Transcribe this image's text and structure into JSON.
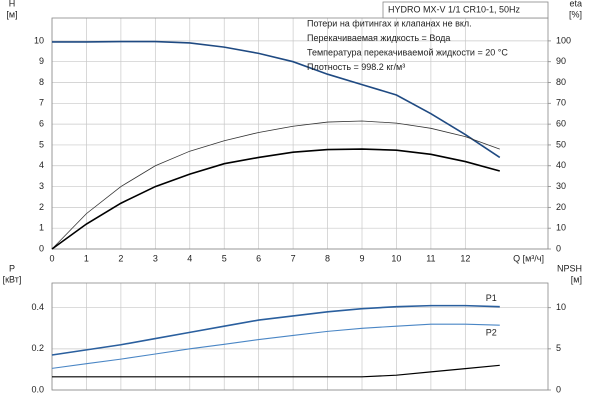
{
  "chart_data": [
    {
      "type": "line",
      "title": "HYDRO MX-V 1/1 CR10-1, 50Hz",
      "annotations": [
        "Потери на фитингах и клапанах не вкл.",
        "Перекачиваемая жидкость = Вода",
        "Температура перекачиваемой жидкости = 20 °C",
        "Плотность = 998.2 кг/м³"
      ],
      "xlabel": "Q [м³/ч]",
      "ylabel": "H",
      "ylabel_unit": "[м]",
      "y2label": "eta",
      "y2label_unit": "[%]",
      "x": [
        0,
        1,
        2,
        3,
        4,
        5,
        6,
        7,
        8,
        9,
        10,
        11,
        12,
        13
      ],
      "xlim": [
        0,
        14.4
      ],
      "xticks": [
        0,
        1,
        2,
        3,
        4,
        5,
        6,
        7,
        8,
        9,
        10,
        11,
        12
      ],
      "ylim": [
        0,
        11.1
      ],
      "yticks": [
        0,
        1,
        2,
        3,
        4,
        5,
        6,
        7,
        8,
        9,
        10
      ],
      "y2lim": [
        0,
        111
      ],
      "y2ticks": [
        0,
        10,
        20,
        30,
        40,
        50,
        60,
        70,
        80,
        90,
        100
      ],
      "grid": true,
      "series": [
        {
          "color": "#1f4a82",
          "width": 1.6,
          "values": [
            9.95,
            9.95,
            9.97,
            9.97,
            9.9,
            9.7,
            9.4,
            9.0,
            8.4,
            7.9,
            7.4,
            6.5,
            5.5,
            4.4
          ]
        },
        {
          "color": "#333333",
          "width": 0.8,
          "axis": "y2",
          "values": [
            0,
            17,
            30,
            40,
            47,
            52,
            56,
            59,
            61,
            61.5,
            60.5,
            58,
            54,
            48
          ]
        },
        {
          "color": "#000000",
          "width": 1.6,
          "axis": "y2",
          "values": [
            0,
            12,
            22,
            30,
            36,
            41,
            44,
            46.5,
            47.8,
            48,
            47.5,
            45.5,
            42,
            37.5
          ]
        }
      ]
    },
    {
      "type": "line",
      "ylabel": "P",
      "ylabel_unit": "[кВт]",
      "y2label": "NPSH",
      "y2label_unit": "[м]",
      "x": [
        0,
        1,
        2,
        3,
        4,
        5,
        6,
        7,
        8,
        9,
        10,
        11,
        12,
        13
      ],
      "xlim": [
        0,
        14.4
      ],
      "xticks": [
        0,
        1,
        2,
        3,
        4,
        5,
        6,
        7,
        8,
        9,
        10,
        11,
        12
      ],
      "ylim": [
        0,
        0.52
      ],
      "yticks": [
        {
          "value": 0,
          "label": "0.0"
        },
        0.2,
        0.4
      ],
      "y2lim": [
        0,
        13
      ],
      "y2ticks": [
        0,
        5,
        10
      ],
      "grid": true,
      "series": [
        {
          "name": "P1",
          "color": "#2a5f9e",
          "width": 1.6,
          "values": [
            0.17,
            0.195,
            0.22,
            0.25,
            0.28,
            0.31,
            0.34,
            0.36,
            0.38,
            0.395,
            0.405,
            0.41,
            0.41,
            0.405
          ]
        },
        {
          "name": "P2",
          "color": "#4a86c5",
          "width": 1.1,
          "values": [
            0.105,
            0.128,
            0.15,
            0.175,
            0.2,
            0.222,
            0.245,
            0.265,
            0.285,
            0.3,
            0.31,
            0.32,
            0.32,
            0.315
          ]
        },
        {
          "color": "#000000",
          "width": 1.2,
          "axis": "y2",
          "values": [
            1.6,
            1.6,
            1.6,
            1.6,
            1.6,
            1.6,
            1.6,
            1.6,
            1.6,
            1.6,
            1.8,
            2.2,
            2.6,
            3.0
          ]
        }
      ]
    }
  ]
}
